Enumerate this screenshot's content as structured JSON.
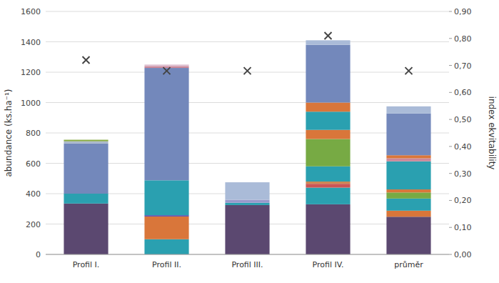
{
  "chart_data": {
    "type": "bar",
    "stacked": true,
    "grid": true,
    "categories": [
      "Profil I.",
      "Profil II.",
      "Profil III.",
      "Profil IV.",
      "průměr"
    ],
    "ylabel": "abundance (ks.ha⁻¹)",
    "y2label": "index ekvitability",
    "ylim": [
      0,
      1600
    ],
    "yticks": [
      0,
      200,
      400,
      600,
      800,
      1000,
      1200,
      1400,
      1600
    ],
    "y2lim": [
      0.0,
      0.9
    ],
    "y2ticks": [
      {
        "value": 0.0,
        "label": "0,00"
      },
      {
        "value": 0.1,
        "label": "0,10"
      },
      {
        "value": 0.2,
        "label": "0,20"
      },
      {
        "value": 0.3,
        "label": "0,30"
      },
      {
        "value": 0.4,
        "label": "0,40"
      },
      {
        "value": 0.5,
        "label": "0,50"
      },
      {
        "value": 0.6,
        "label": "0,60"
      },
      {
        "value": 0.7,
        "label": "0,70"
      },
      {
        "value": 0.8,
        "label": "0,80"
      },
      {
        "value": 0.9,
        "label": "0,90"
      }
    ],
    "series": [
      {
        "values": [
          335,
          100,
          325,
          330,
          248
        ],
        "colors": [
          "#5b4870",
          "#2aa0b0",
          "#5b4870",
          "#5b4870",
          "#5b4870"
        ]
      },
      {
        "values": [
          65,
          150,
          15,
          110,
          40
        ],
        "colors": [
          "#2aa0b0",
          "#d9763a",
          "#2aa0b0",
          "#2aa0b0",
          "#d9763a"
        ]
      },
      {
        "values": [
          330,
          8,
          20,
          25,
          80
        ],
        "colors": [
          "#7388bb",
          "#5544aa",
          "#9999cc",
          "#cc5555",
          "#2aa0b0"
        ]
      },
      {
        "values": [
          15,
          230,
          115,
          15,
          40
        ],
        "colors": [
          "#aab8cc",
          "#2aa0b0",
          "#aabbd8",
          "#cc8855",
          "#77aa44"
        ]
      },
      {
        "values": [
          10,
          740,
          null,
          100,
          20
        ],
        "colors": [
          "#88aa44",
          "#7388bb",
          null,
          "#2aa0b0",
          "#d9763a"
        ]
      },
      {
        "values": [
          null,
          10,
          null,
          180,
          185
        ],
        "colors": [
          null,
          "#cc8899",
          null,
          "#77aa44",
          "#2aa0b0"
        ]
      },
      {
        "values": [
          null,
          12,
          null,
          60,
          20
        ],
        "colors": [
          null,
          "#ddbbcc",
          null,
          "#d9763a",
          "#cc8899"
        ]
      },
      {
        "values": [
          null,
          null,
          null,
          120,
          20
        ],
        "colors": [
          null,
          null,
          null,
          "#2aa0b0",
          "#d9763a"
        ]
      },
      {
        "values": [
          null,
          null,
          null,
          60,
          275
        ],
        "colors": [
          null,
          null,
          null,
          "#d9763a",
          "#7388bb"
        ]
      },
      {
        "values": [
          null,
          null,
          null,
          380,
          47
        ],
        "colors": [
          null,
          null,
          null,
          "#7388bb",
          "#aabbd8"
        ]
      },
      {
        "values": [
          null,
          null,
          null,
          30,
          null
        ],
        "colors": [
          null,
          null,
          null,
          "#aabbd8",
          null
        ]
      },
      {
        "type": "scatter",
        "axis": "y2",
        "marker": "x",
        "color": "#444444",
        "values": [
          0.72,
          0.68,
          0.68,
          0.81,
          0.68
        ]
      }
    ]
  }
}
